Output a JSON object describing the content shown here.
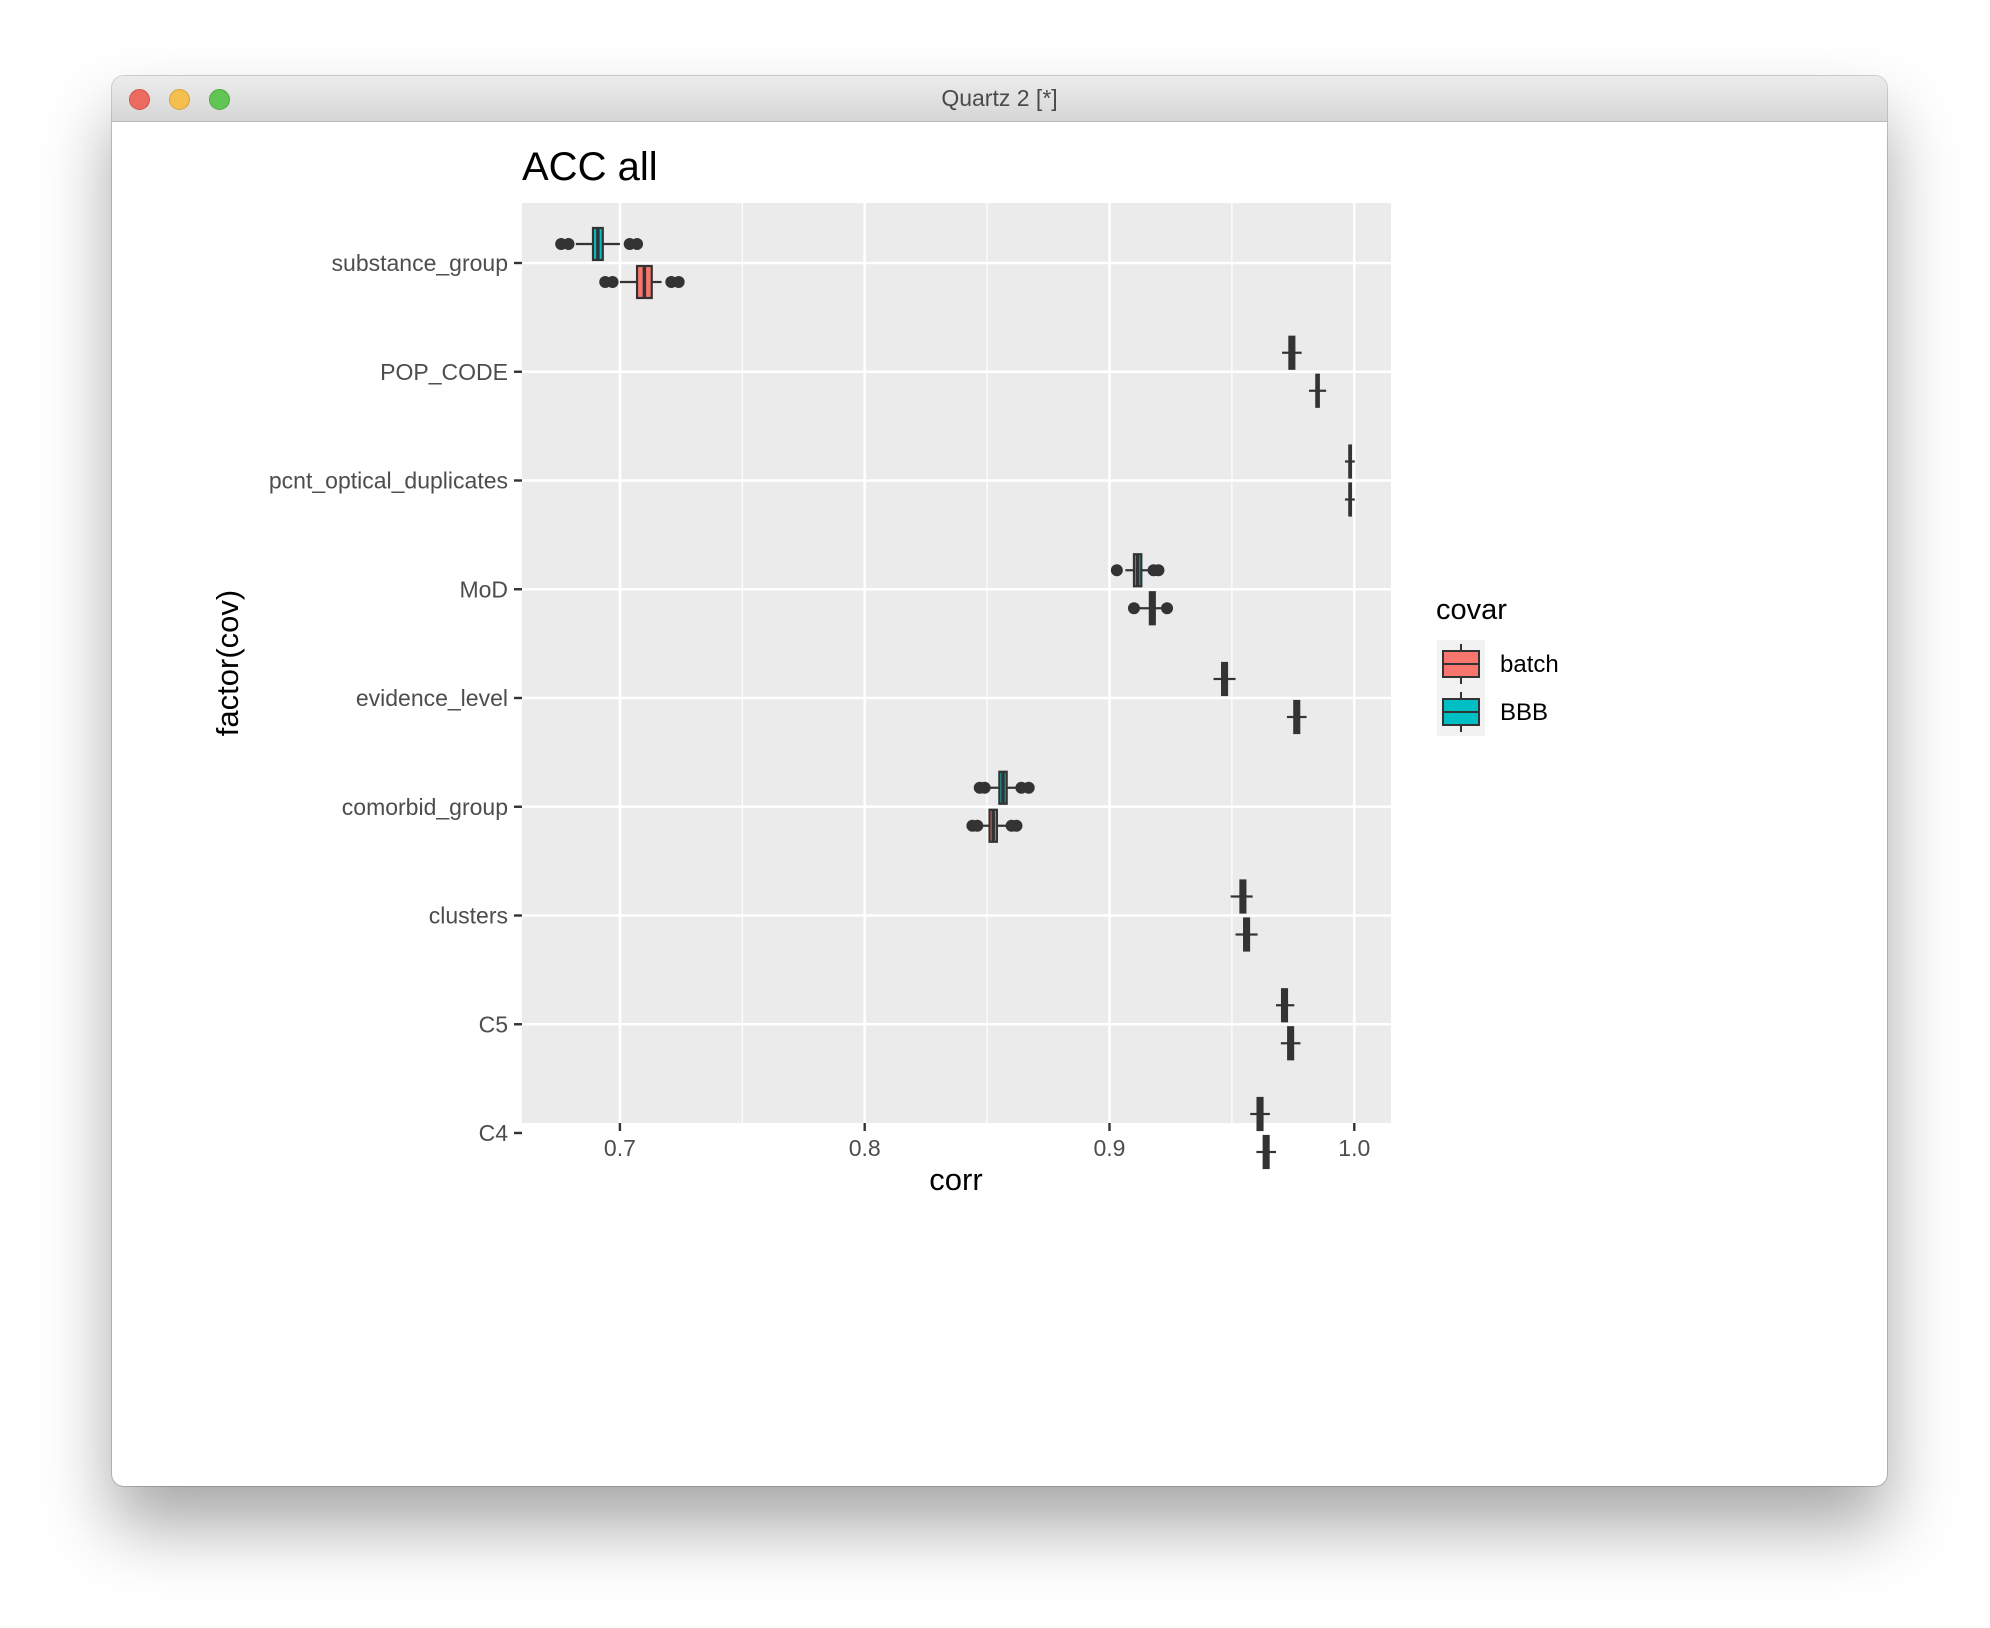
{
  "window": {
    "title": "Quartz 2 [*]",
    "controls": [
      "close",
      "minimize",
      "zoom"
    ]
  },
  "chart_data": {
    "type": "boxplot",
    "orientation": "horizontal",
    "title": "ACC all",
    "xlabel": "corr",
    "ylabel": "factor(cov)",
    "xlim": [
      0.66,
      1.015
    ],
    "xticks": [
      0.7,
      0.8,
      0.9,
      1.0
    ],
    "xtick_labels": [
      "0.7",
      "0.8",
      "0.9",
      "1.0"
    ],
    "categories": [
      "substance_group",
      "POP_CODE",
      "pcnt_optical_duplicates",
      "MoD",
      "evidence_level",
      "comorbid_group",
      "clusters",
      "C5",
      "C4"
    ],
    "legend": {
      "title": "covar",
      "position": "right",
      "entries": [
        {
          "name": "batch",
          "color": "#F8766D"
        },
        {
          "name": "BBB",
          "color": "#00BFC4"
        }
      ]
    },
    "grid": true,
    "panel_background": "#EBEBEB",
    "series": [
      {
        "name": "BBB",
        "color": "#00BFC4",
        "boxes": [
          {
            "q1": 0.689,
            "median": 0.691,
            "q3": 0.693,
            "whisker_low": 0.682,
            "whisker_high": 0.7,
            "outliers_low": [
              0.676,
              0.679
            ],
            "outliers_high": [
              0.704,
              0.707
            ]
          },
          {
            "q1": 0.9735,
            "median": 0.9745,
            "q3": 0.9755,
            "whisker_low": 0.9705,
            "whisker_high": 0.9785
          },
          {
            "q1": 0.998,
            "median": 0.9983,
            "q3": 0.9986,
            "whisker_low": 0.9962,
            "whisker_high": 1.0002
          },
          {
            "q1": 0.91,
            "median": 0.9115,
            "q3": 0.913,
            "whisker_low": 0.9065,
            "whisker_high": 0.917,
            "outliers_low": [
              0.903
            ],
            "outliers_high": [
              0.918,
              0.92
            ]
          },
          {
            "q1": 0.946,
            "median": 0.947,
            "q3": 0.948,
            "whisker_low": 0.9425,
            "whisker_high": 0.9515
          },
          {
            "q1": 0.855,
            "median": 0.8565,
            "q3": 0.858,
            "whisker_low": 0.851,
            "whisker_high": 0.8625,
            "outliers_low": [
              0.847,
              0.849
            ],
            "outliers_high": [
              0.864,
              0.867
            ]
          },
          {
            "q1": 0.9535,
            "median": 0.9545,
            "q3": 0.9555,
            "whisker_low": 0.9495,
            "whisker_high": 0.9585
          },
          {
            "q1": 0.9705,
            "median": 0.9715,
            "q3": 0.9725,
            "whisker_low": 0.968,
            "whisker_high": 0.9755
          },
          {
            "q1": 0.9605,
            "median": 0.9615,
            "q3": 0.9625,
            "whisker_low": 0.9575,
            "whisker_high": 0.9655
          }
        ]
      },
      {
        "name": "batch",
        "color": "#F8766D",
        "boxes": [
          {
            "q1": 0.707,
            "median": 0.71,
            "q3": 0.713,
            "whisker_low": 0.7,
            "whisker_high": 0.717,
            "outliers_low": [
              0.694,
              0.697
            ],
            "outliers_high": [
              0.721,
              0.724
            ]
          },
          {
            "q1": 0.9845,
            "median": 0.985,
            "q3": 0.9855,
            "whisker_low": 0.9815,
            "whisker_high": 0.9885
          },
          {
            "q1": 0.998,
            "median": 0.9983,
            "q3": 0.9986,
            "whisker_low": 0.9962,
            "whisker_high": 1.0002
          },
          {
            "q1": 0.9165,
            "median": 0.9175,
            "q3": 0.9185,
            "whisker_low": 0.911,
            "whisker_high": 0.9225,
            "outliers_low": [
              0.91
            ],
            "outliers_high": [
              0.9235
            ]
          },
          {
            "q1": 0.9755,
            "median": 0.9765,
            "q3": 0.9775,
            "whisker_low": 0.9725,
            "whisker_high": 0.9805
          },
          {
            "q1": 0.851,
            "median": 0.8525,
            "q3": 0.854,
            "whisker_low": 0.847,
            "whisker_high": 0.8585,
            "outliers_low": [
              0.844,
              0.846
            ],
            "outliers_high": [
              0.86,
              0.862
            ]
          },
          {
            "q1": 0.955,
            "median": 0.956,
            "q3": 0.957,
            "whisker_low": 0.9515,
            "whisker_high": 0.9605
          },
          {
            "q1": 0.973,
            "median": 0.974,
            "q3": 0.975,
            "whisker_low": 0.97,
            "whisker_high": 0.978
          },
          {
            "q1": 0.963,
            "median": 0.964,
            "q3": 0.965,
            "whisker_low": 0.96,
            "whisker_high": 0.968
          }
        ]
      }
    ]
  }
}
